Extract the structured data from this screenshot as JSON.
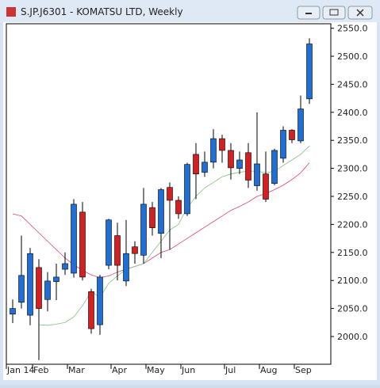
{
  "window_title": "S.JP.J6301 - KOMATSU LTD, Weekly",
  "chart_data": {
    "type": "candlestick",
    "categories": [
      "Jan 14",
      null,
      null,
      "Feb",
      null,
      null,
      null,
      "Mar",
      null,
      null,
      null,
      null,
      "Apr",
      null,
      null,
      null,
      "May",
      null,
      null,
      null,
      "Jun",
      null,
      null,
      null,
      null,
      "Jul",
      null,
      null,
      null,
      "Aug",
      null,
      null,
      null,
      "Sep",
      null
    ],
    "open": [
      2040,
      2061,
      2038,
      2123,
      2066,
      2098,
      2120,
      2113,
      2222,
      2080,
      2021,
      2127,
      2180,
      2099,
      2160,
      2145,
      2230,
      2184,
      2266,
      2243,
      2219,
      2325,
      2293,
      2311,
      2353,
      2332,
      2300,
      2328,
      2269,
      2290,
      2273,
      2318,
      2368,
      2349,
      2424
    ],
    "high": [
      2066,
      2180,
      2158,
      2138,
      2115,
      2130,
      2150,
      2245,
      2240,
      2085,
      2110,
      2210,
      2203,
      2208,
      2170,
      2265,
      2240,
      2265,
      2275,
      2250,
      2310,
      2345,
      2330,
      2370,
      2360,
      2345,
      2330,
      2345,
      2400,
      2330,
      2335,
      2375,
      2370,
      2430,
      2532
    ],
    "low": [
      2024,
      2050,
      2020,
      1958,
      2045,
      2065,
      2110,
      2105,
      2100,
      2005,
      2003,
      2120,
      2100,
      2090,
      2130,
      2130,
      2180,
      2140,
      2155,
      2210,
      2215,
      2245,
      2285,
      2300,
      2310,
      2280,
      2290,
      2265,
      2260,
      2240,
      2270,
      2310,
      2345,
      2345,
      2415
    ],
    "close": [
      2050,
      2109,
      2148,
      2050,
      2099,
      2106,
      2130,
      2236,
      2106,
      2014,
      2106,
      2208,
      2127,
      2148,
      2148,
      2236,
      2194,
      2262,
      2243,
      2219,
      2307,
      2290,
      2311,
      2353,
      2332,
      2301,
      2315,
      2279,
      2308,
      2245,
      2332,
      2368,
      2351,
      2406,
      2522
    ],
    "up_color": "#1f6fd6",
    "down_color": "#d42020",
    "moving_averages": [
      {
        "color": "#e0407a",
        "values": [
          2219,
          2215,
          2200,
          2185,
          2170,
          2155,
          2140,
          2128,
          2118,
          2110,
          2105,
          2108,
          2115,
          2120,
          2125,
          2130,
          2140,
          2150,
          2155,
          2165,
          2175,
          2185,
          2195,
          2205,
          2215,
          2225,
          2232,
          2240,
          2250,
          2255,
          2262,
          2270,
          2280,
          2292,
          2310
        ]
      },
      {
        "color": "#80c080",
        "values": [
          null,
          null,
          null,
          2021,
          2020,
          2022,
          2025,
          2035,
          2055,
          2080,
          2070,
          2095,
          2108,
          2120,
          2125,
          2130,
          2150,
          2170,
          2190,
          2200,
          2230,
          2250,
          2265,
          2275,
          2285,
          2290,
          2293,
          2295,
          2295,
          2292,
          2295,
          2305,
          2315,
          2325,
          2340
        ]
      }
    ],
    "ylim": [
      1950.5,
      2558
    ],
    "yticks": [
      {
        "value": 2000,
        "label": "2000.0"
      },
      {
        "value": 2050,
        "label": "2050.0"
      },
      {
        "value": 2100,
        "label": "2100.0"
      },
      {
        "value": 2150,
        "label": "2150.0"
      },
      {
        "value": 2200,
        "label": "2200.0"
      },
      {
        "value": 2250,
        "label": "2250.0"
      },
      {
        "value": 2300,
        "label": "2300.0"
      },
      {
        "value": 2350,
        "label": "2350.0"
      },
      {
        "value": 2400,
        "label": "2400.0"
      },
      {
        "value": 2450,
        "label": "2450.0"
      },
      {
        "value": 2500,
        "label": "2500.0"
      },
      {
        "value": 2550,
        "label": "2550.0"
      }
    ]
  }
}
